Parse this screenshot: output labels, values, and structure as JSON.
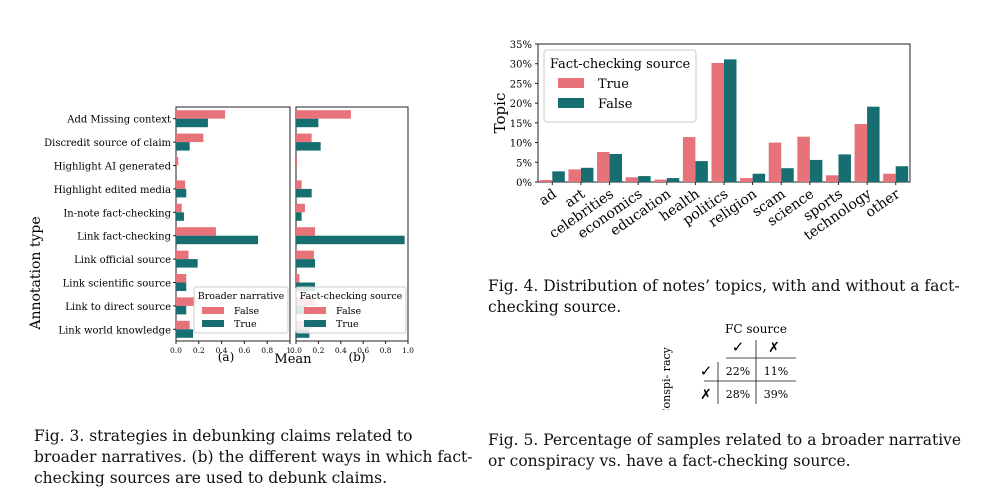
{
  "fig3": {
    "ylabel": "Annotation type",
    "xlabel": "Mean",
    "panel_a_label": "(a)",
    "panel_b_label": "(b)",
    "caption": "Fig. 3.  strategies in debunking claims related to broader narratives. (b) the different ways in which fact-checking sources are used to debunk claims.",
    "colors": {
      "false": "#e8727a",
      "true": "#176e70"
    }
  },
  "fig4": {
    "caption": "Fig. 4.  Distribution of notes’ topics, with and without a fact-checking source."
  },
  "fig5": {
    "header": "FC source",
    "row_label": "Conspi- racy",
    "check": "✓",
    "cross": "✗",
    "cells": [
      [
        "22%",
        "11%"
      ],
      [
        "28%",
        "39%"
      ]
    ],
    "caption": "Fig. 5.  Percentage of samples related to a broader narrative or conspiracy vs. have a fact-checking source."
  },
  "chart_data": [
    {
      "type": "bar",
      "orientation": "horizontal",
      "panel": "(a)",
      "categories": [
        "Add Missing context",
        "Discredit source of claim",
        "Highlight AI generated",
        "Highlight edited media",
        "In-note fact-checking",
        "Link fact-checking",
        "Link official source",
        "Link scientific source",
        "Link to direct source",
        "Link world knowledge"
      ],
      "series": [
        {
          "name": "False",
          "values": [
            0.43,
            0.24,
            0.02,
            0.08,
            0.05,
            0.35,
            0.11,
            0.09,
            0.17,
            0.12
          ]
        },
        {
          "name": "True",
          "values": [
            0.28,
            0.12,
            0.0,
            0.09,
            0.07,
            0.72,
            0.19,
            0.09,
            0.09,
            0.15
          ]
        }
      ],
      "xlim": [
        0,
        1
      ],
      "xticks": [
        "0.0",
        "0.2",
        "0.4",
        "0.6",
        "0.8",
        "1."
      ],
      "ylabel": "Annotation type",
      "legend_title": "Broader narrative",
      "legend_position": "bottom-right"
    },
    {
      "type": "bar",
      "orientation": "horizontal",
      "panel": "(b)",
      "categories": [
        "Add Missing context",
        "Discredit source of claim",
        "Highlight AI generated",
        "Highlight edited media",
        "In-note fact-checking",
        "Link fact-checking",
        "Link official source",
        "Link scientific source",
        "Link to direct source",
        "Link world knowledge"
      ],
      "series": [
        {
          "name": "False",
          "values": [
            0.49,
            0.14,
            0.01,
            0.05,
            0.08,
            0.17,
            0.16,
            0.03,
            0.17,
            0.14
          ]
        },
        {
          "name": "True",
          "values": [
            0.2,
            0.22,
            0.0,
            0.14,
            0.05,
            0.97,
            0.17,
            0.17,
            0.09,
            0.12
          ]
        }
      ],
      "xlim": [
        0,
        1
      ],
      "xticks": [
        "0.0",
        "0.2",
        "0.4",
        "0.6",
        "0.8",
        "1.0"
      ],
      "xlabel": "Mean",
      "legend_title": "Fact-checking source",
      "legend_position": "bottom-right"
    },
    {
      "type": "bar",
      "categories": [
        "ad",
        "art",
        "celebrities",
        "economics",
        "education",
        "health",
        "politics",
        "religion",
        "scam",
        "science",
        "sports",
        "technology",
        "other"
      ],
      "series": [
        {
          "name": "True",
          "values": [
            0.5,
            3.2,
            7.6,
            1.2,
            0.6,
            11.4,
            30.2,
            1.0,
            10.0,
            11.5,
            1.7,
            14.7,
            2.1
          ]
        },
        {
          "name": "False",
          "values": [
            2.7,
            3.6,
            7.1,
            1.5,
            1.0,
            5.3,
            31.1,
            2.1,
            3.5,
            5.6,
            7.0,
            19.1,
            4.0
          ]
        }
      ],
      "ylabel": "Topic",
      "ylim": [
        0,
        35
      ],
      "yticks": [
        "0%",
        "5%",
        "10%",
        "15%",
        "20%",
        "25%",
        "30%",
        "35%"
      ],
      "legend_title": "Fact-checking source",
      "legend_position": "top-left",
      "colors": {
        "True": "#e8727a",
        "False": "#176e70"
      }
    }
  ]
}
